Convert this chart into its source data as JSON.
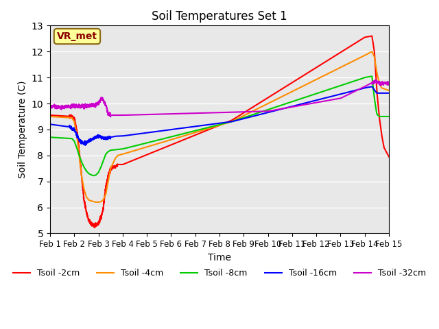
{
  "title": "Soil Temperatures Set 1",
  "xlabel": "Time",
  "ylabel": "Soil Temperature (C)",
  "ylim": [
    5.0,
    13.0
  ],
  "yticks": [
    5.0,
    6.0,
    7.0,
    8.0,
    9.0,
    10.0,
    11.0,
    12.0,
    13.0
  ],
  "xtick_labels": [
    "Feb 1",
    "Feb 2",
    "Feb 3",
    "Feb 4",
    "Feb 5",
    "Feb 6",
    "Feb 7",
    "Feb 8",
    "Feb 9",
    "Feb 10",
    "Feb 11",
    "Feb 12",
    "Feb 13",
    "Feb 14",
    "Feb 15"
  ],
  "annotation_text": "VR_met",
  "annotation_bg": "#ffff99",
  "annotation_border": "#8B6914",
  "bg_color": "#e8e8e8",
  "series_colors": [
    "#ff0000",
    "#ff8c00",
    "#00cc00",
    "#0000ff",
    "#cc00cc"
  ],
  "series_labels": [
    "Tsoil -2cm",
    "Tsoil -4cm",
    "Tsoil -8cm",
    "Tsoil -16cm",
    "Tsoil -32cm"
  ],
  "line_width": 1.5,
  "figsize": [
    6.4,
    4.8
  ],
  "dpi": 100
}
